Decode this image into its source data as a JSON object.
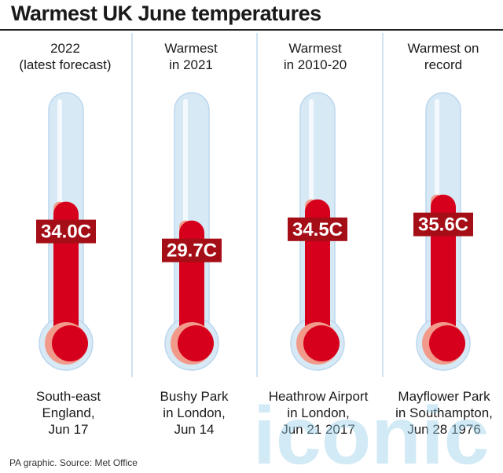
{
  "title": "Warmest UK June temperatures",
  "source": "PA graphic. Source: Met Office",
  "watermark": "iconic",
  "colors": {
    "mercury": "#d6001c",
    "shadow": "#f29a8a",
    "tube": "#d8e9f6",
    "tube_edge": "#bcd7ee",
    "divider": "#cfe3f3",
    "label_bg": "#a50e16"
  },
  "chart_data": {
    "type": "bar",
    "title": "Warmest UK June temperatures",
    "unit": "C",
    "ylim": [
      0,
      40
    ],
    "categories": [
      {
        "header": [
          "2022",
          "(latest forecast)"
        ],
        "location": [
          "South-east",
          "England,",
          "Jun 17"
        ],
        "value": 34.0,
        "label": "34.0C"
      },
      {
        "header": [
          "Warmest",
          "in 2021"
        ],
        "location": [
          "Bushy Park",
          "in London,",
          "Jun 14"
        ],
        "value": 29.7,
        "label": "29.7C"
      },
      {
        "header": [
          "Warmest",
          "in 2010-20"
        ],
        "location": [
          "Heathrow Airport",
          "in London,",
          "Jun 21 2017"
        ],
        "value": 34.5,
        "label": "34.5C"
      },
      {
        "header": [
          "Warmest on",
          "record"
        ],
        "location": [
          "Mayflower Park",
          "in Southampton,",
          "Jun 28 1976"
        ],
        "value": 35.6,
        "label": "35.6C"
      }
    ]
  }
}
